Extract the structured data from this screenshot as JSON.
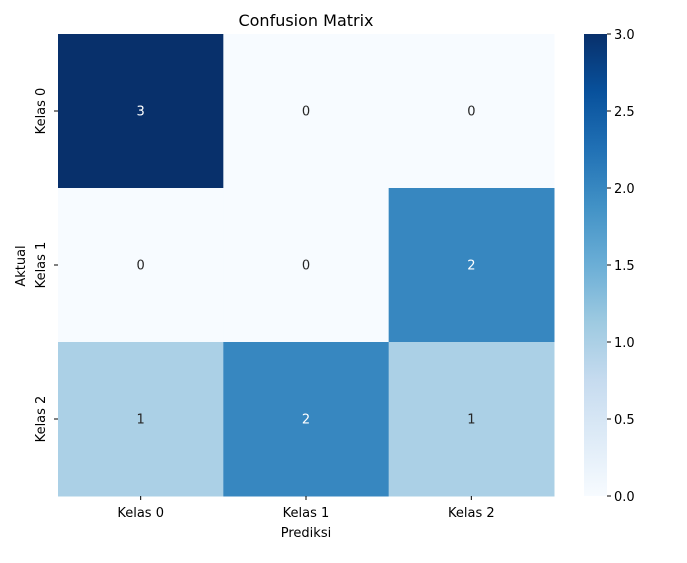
{
  "chart_data": {
    "type": "heatmap",
    "title": "Confusion Matrix",
    "xlabel": "Prediksi",
    "ylabel": "Aktual",
    "x_categories": [
      "Kelas 0",
      "Kelas 1",
      "Kelas 2"
    ],
    "y_categories": [
      "Kelas 0",
      "Kelas 1",
      "Kelas 2"
    ],
    "values": [
      [
        3,
        0,
        0
      ],
      [
        0,
        0,
        2
      ],
      [
        1,
        2,
        1
      ]
    ],
    "colormap": "Blues",
    "vmin": 0,
    "vmax": 3,
    "colorbar_ticks": [
      "0.0",
      "0.5",
      "1.0",
      "1.5",
      "2.0",
      "2.5",
      "3.0"
    ]
  }
}
